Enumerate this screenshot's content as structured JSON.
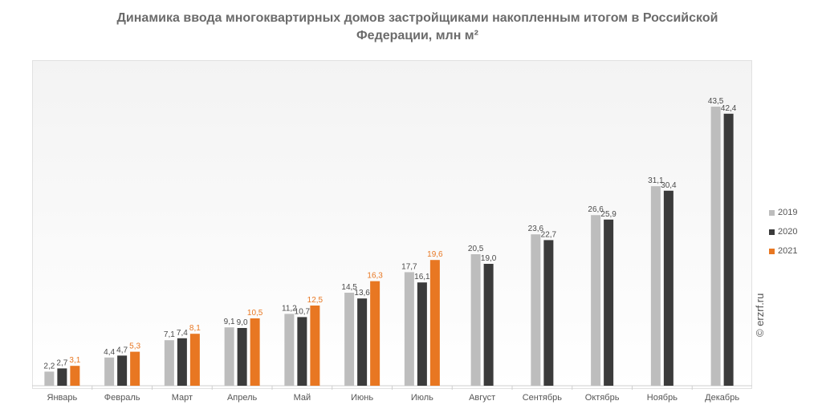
{
  "title": "Динамика ввода многоквартирных домов застройщиками накопленным итогом в Российской Федерации, млн м²",
  "watermark": "© erzrf.ru",
  "colors": {
    "s2019": "#bdbdbd",
    "s2020": "#3b3b3b",
    "s2021": "#e87722",
    "label_default": "#4a4a4a",
    "label_2021": "#e87722",
    "axis": "#cfcfcf"
  },
  "chart_data": {
    "type": "bar",
    "title": "Динамика ввода многоквартирных домов застройщиками накопленным итогом в Российской Федерации, млн м²",
    "xlabel": "",
    "ylabel": "",
    "ylim": [
      0,
      45
    ],
    "grid": false,
    "legend_position": "right",
    "categories": [
      "Январь",
      "Февраль",
      "Март",
      "Апрель",
      "Май",
      "Июнь",
      "Июль",
      "Август",
      "Сентябрь",
      "Октябрь",
      "Ноябрь",
      "Декабрь"
    ],
    "series": [
      {
        "name": "2019",
        "values": [
          2.2,
          4.4,
          7.1,
          9.1,
          11.2,
          14.5,
          17.7,
          20.5,
          23.6,
          26.6,
          31.1,
          43.5
        ],
        "labels": [
          "2,2",
          "4,4",
          "7,1",
          "9,1",
          "11,2",
          "14,5",
          "17,7",
          "20,5",
          "23,6",
          "26,6",
          "31,1",
          "43,5"
        ]
      },
      {
        "name": "2020",
        "values": [
          2.7,
          4.7,
          7.4,
          9.0,
          10.7,
          13.6,
          16.1,
          19.0,
          22.7,
          25.9,
          30.4,
          42.4
        ],
        "labels": [
          "2,7",
          "4,7",
          "7,4",
          "9,0",
          "10,7",
          "13,6",
          "16,1",
          "19,0",
          "22,7",
          "25,9",
          "30,4",
          "42,4"
        ]
      },
      {
        "name": "2021",
        "values": [
          3.1,
          5.3,
          8.1,
          10.5,
          12.5,
          16.3,
          19.6,
          null,
          null,
          null,
          null,
          null
        ],
        "labels": [
          "3,1",
          "5,3",
          "8,1",
          "10,5",
          "12,5",
          "16,3",
          "19,6",
          null,
          null,
          null,
          null,
          null
        ]
      }
    ]
  }
}
